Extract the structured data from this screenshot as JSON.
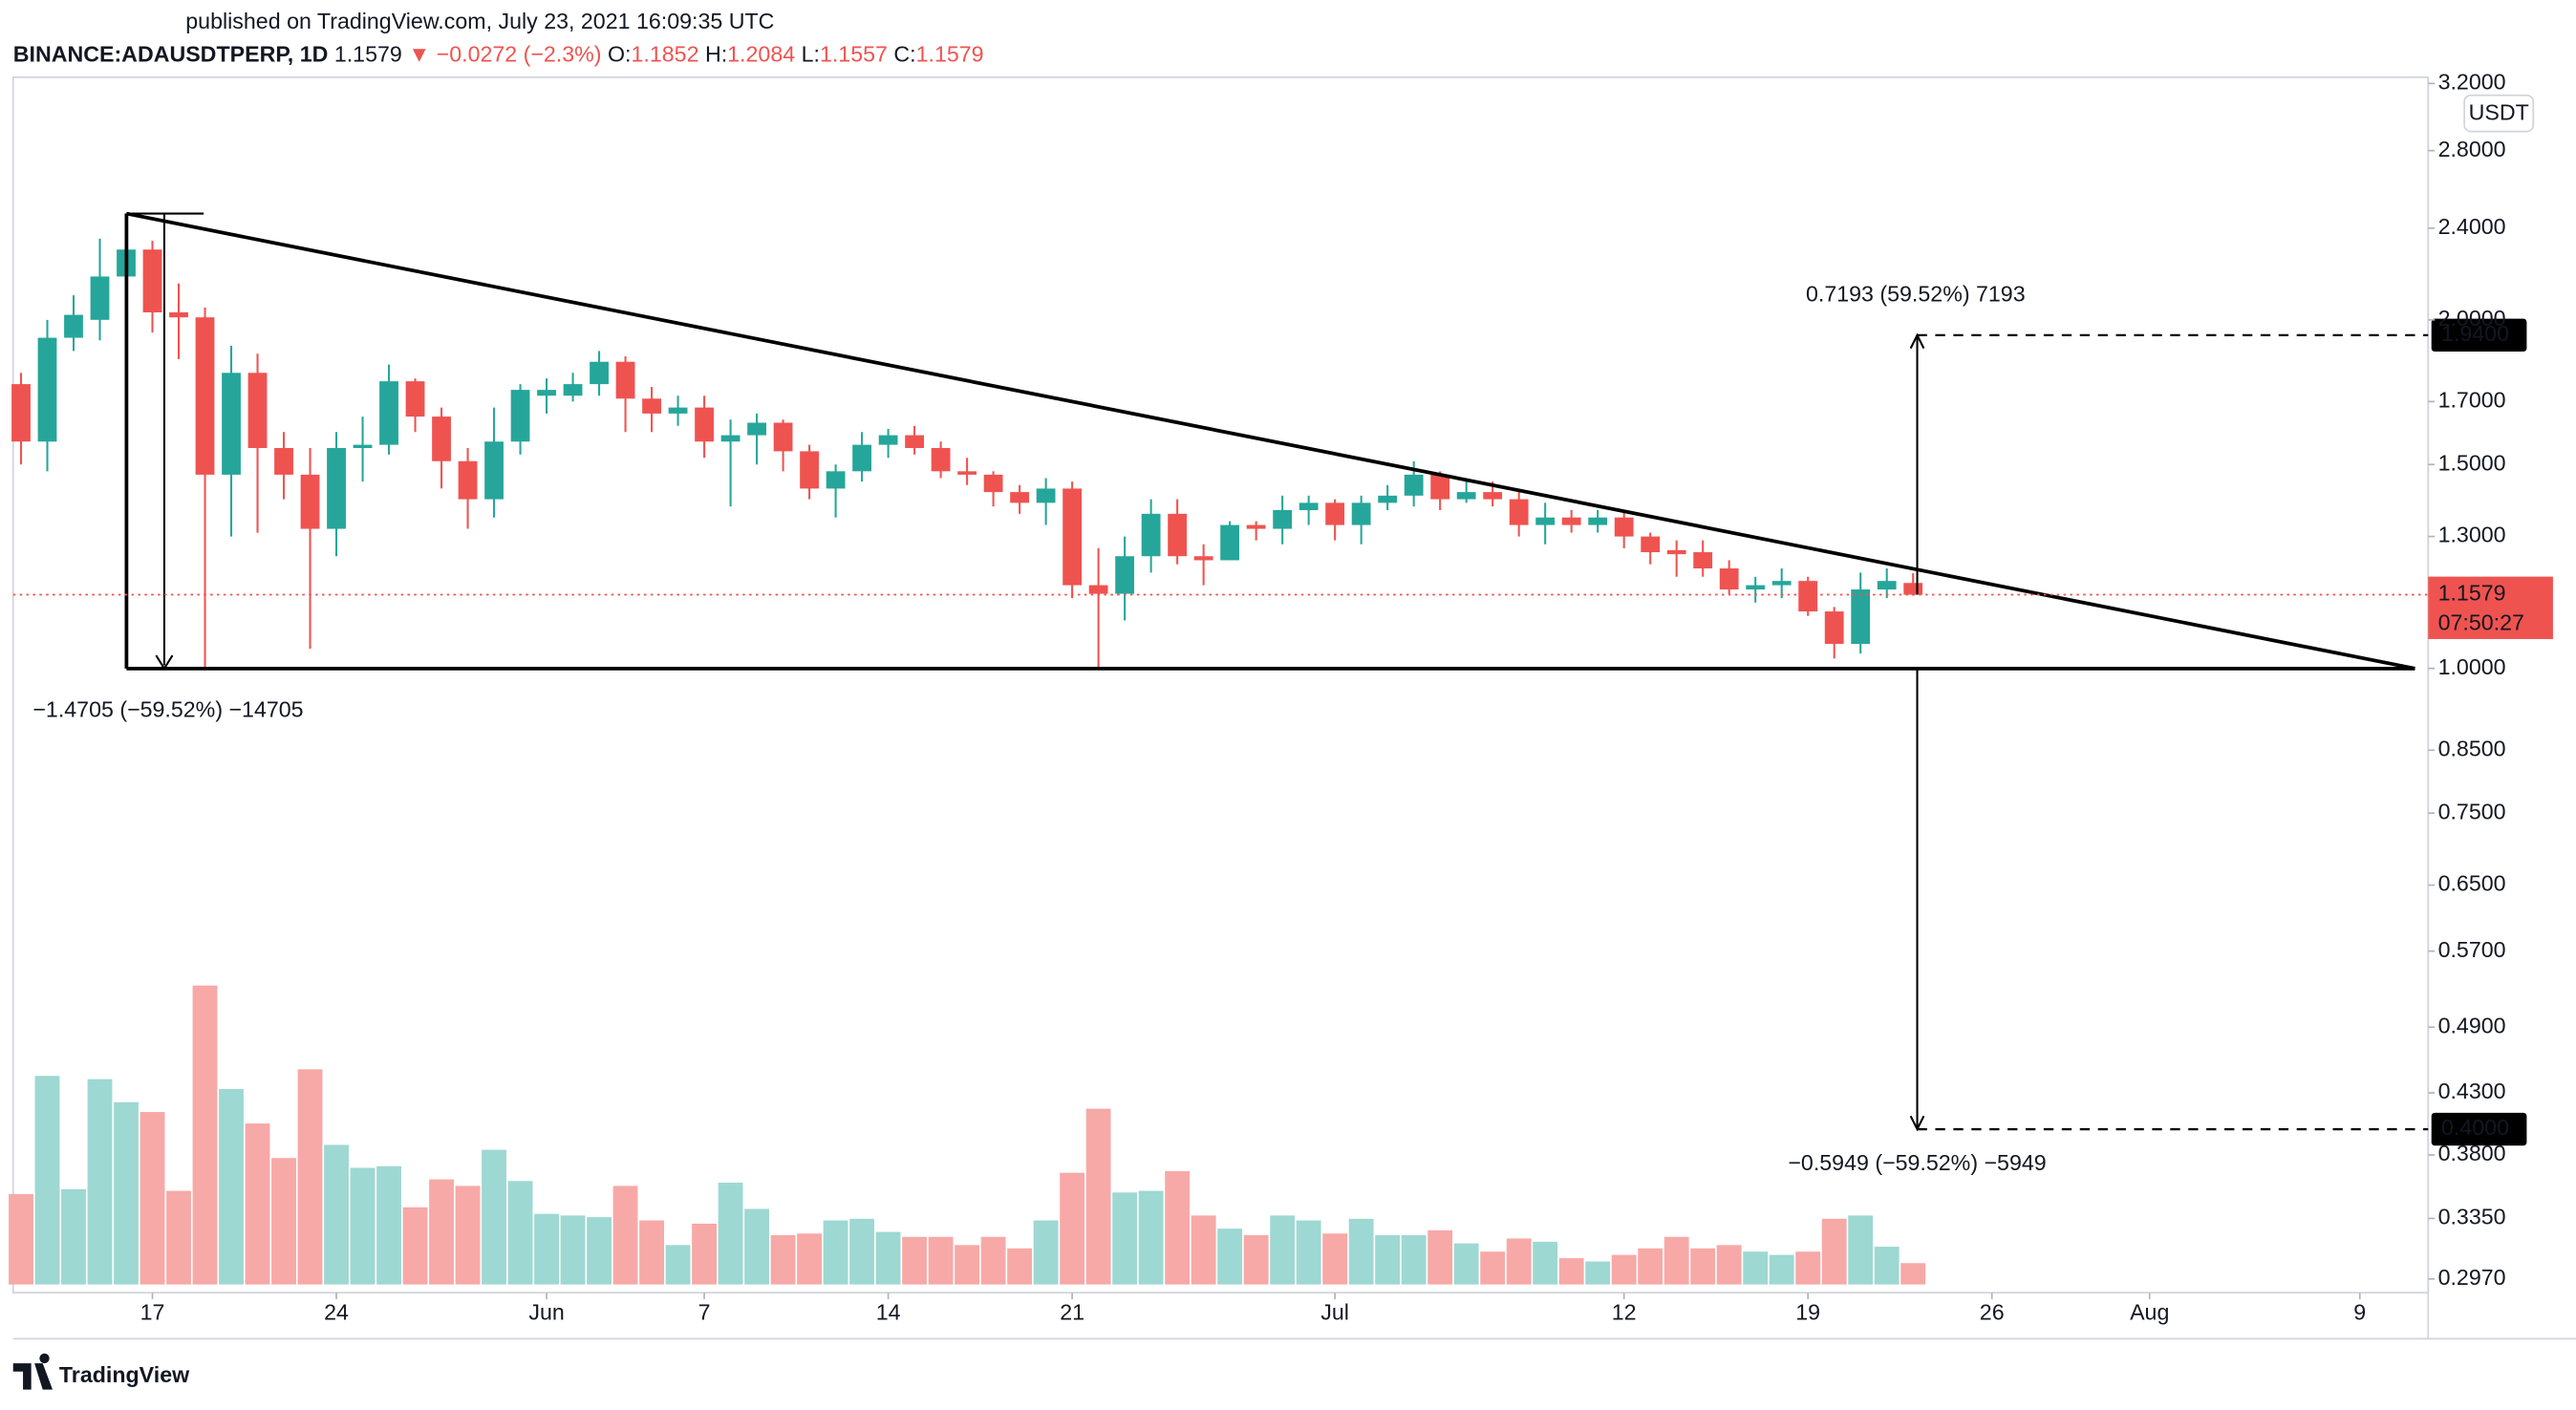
{
  "chart_data": {
    "type": "candlestick",
    "published": "published on TradingView.com, July 23, 2021 16:09:35 UTC",
    "header": {
      "symbol": "BINANCE:ADAUSDTPERP, 1D",
      "last": "1.1579",
      "change": "▼ −0.0272 (−2.3%)",
      "o_label": "O:",
      "o": "1.1852",
      "h_label": "H:",
      "h": "1.2084",
      "l_label": "L:",
      "l": "1.1557",
      "c_label": "C:",
      "c": "1.1579"
    },
    "currency": "USDT",
    "brand": "TradingView",
    "up_color": "#26a69a",
    "down_color": "#ef5350",
    "up_volume_color": "#9ed8d2",
    "down_volume_color": "#f7a9a7",
    "log_scale": true,
    "grid": false,
    "open": [
      1.76,
      1.57,
      1.93,
      2.0,
      2.18,
      2.3,
      2.03,
      2.01,
      1.47,
      1.8,
      1.55,
      1.47,
      1.32,
      1.55,
      1.56,
      1.77,
      1.65,
      1.51,
      1.4,
      1.57,
      1.72,
      1.72,
      1.76,
      1.84,
      1.71,
      1.66,
      1.68,
      1.57,
      1.59,
      1.63,
      1.54,
      1.43,
      1.48,
      1.56,
      1.59,
      1.55,
      1.48,
      1.47,
      1.42,
      1.39,
      1.43,
      1.18,
      1.16,
      1.25,
      1.36,
      1.25,
      1.24,
      1.33,
      1.32,
      1.37,
      1.39,
      1.33,
      1.39,
      1.41,
      1.47,
      1.4,
      1.42,
      1.4,
      1.33,
      1.35,
      1.33,
      1.35,
      1.3,
      1.265,
      1.26,
      1.22,
      1.17,
      1.18,
      1.19,
      1.12,
      1.05,
      1.17,
      1.1852
    ],
    "high": [
      1.8,
      2.0,
      2.1,
      2.35,
      2.45,
      2.34,
      2.15,
      2.05,
      1.9,
      1.87,
      1.6,
      1.55,
      1.6,
      1.65,
      1.83,
      1.78,
      1.68,
      1.55,
      1.68,
      1.76,
      1.78,
      1.8,
      1.88,
      1.86,
      1.75,
      1.72,
      1.72,
      1.64,
      1.66,
      1.64,
      1.56,
      1.5,
      1.6,
      1.61,
      1.62,
      1.57,
      1.52,
      1.48,
      1.44,
      1.46,
      1.45,
      1.27,
      1.3,
      1.4,
      1.4,
      1.28,
      1.34,
      1.34,
      1.41,
      1.41,
      1.4,
      1.41,
      1.44,
      1.51,
      1.48,
      1.46,
      1.45,
      1.42,
      1.39,
      1.37,
      1.37,
      1.37,
      1.31,
      1.29,
      1.29,
      1.24,
      1.2,
      1.22,
      1.2,
      1.13,
      1.21,
      1.22,
      1.2084
    ],
    "low": [
      1.5,
      1.48,
      1.88,
      1.92,
      2.0,
      1.95,
      1.85,
      1.0,
      1.3,
      1.31,
      1.4,
      1.04,
      1.25,
      1.45,
      1.53,
      1.6,
      1.43,
      1.32,
      1.35,
      1.53,
      1.66,
      1.7,
      1.72,
      1.6,
      1.6,
      1.62,
      1.52,
      1.38,
      1.5,
      1.48,
      1.4,
      1.35,
      1.45,
      1.52,
      1.53,
      1.46,
      1.44,
      1.38,
      1.36,
      1.33,
      1.15,
      1.0,
      1.1,
      1.21,
      1.23,
      1.18,
      1.24,
      1.29,
      1.28,
      1.33,
      1.29,
      1.28,
      1.37,
      1.38,
      1.37,
      1.39,
      1.38,
      1.3,
      1.28,
      1.31,
      1.31,
      1.27,
      1.23,
      1.2,
      1.2,
      1.16,
      1.14,
      1.15,
      1.11,
      1.02,
      1.03,
      1.15,
      1.1557
    ],
    "close": [
      1.57,
      1.93,
      2.02,
      2.18,
      2.3,
      2.03,
      2.01,
      1.47,
      1.8,
      1.55,
      1.47,
      1.32,
      1.55,
      1.56,
      1.77,
      1.65,
      1.51,
      1.4,
      1.57,
      1.74,
      1.74,
      1.76,
      1.84,
      1.71,
      1.66,
      1.68,
      1.57,
      1.59,
      1.63,
      1.54,
      1.43,
      1.48,
      1.56,
      1.59,
      1.55,
      1.48,
      1.47,
      1.42,
      1.39,
      1.43,
      1.18,
      1.16,
      1.25,
      1.36,
      1.25,
      1.24,
      1.33,
      1.32,
      1.37,
      1.39,
      1.33,
      1.39,
      1.41,
      1.47,
      1.4,
      1.42,
      1.4,
      1.33,
      1.35,
      1.33,
      1.35,
      1.3,
      1.26,
      1.255,
      1.22,
      1.17,
      1.18,
      1.19,
      1.12,
      1.05,
      1.17,
      1.19,
      1.1579
    ],
    "volume": [
      55,
      127,
      58,
      125,
      111,
      105,
      57,
      182,
      119,
      98,
      77,
      131,
      85,
      71,
      72,
      47,
      64,
      60,
      82,
      63,
      43,
      42,
      41,
      60,
      39,
      24,
      37,
      62,
      46,
      30,
      31,
      39,
      40,
      32,
      29,
      29,
      24,
      29,
      22,
      39,
      68,
      107,
      56,
      57,
      69,
      42,
      34,
      30,
      42,
      39,
      31,
      40,
      30,
      30,
      33,
      25,
      20,
      28,
      26,
      16,
      14,
      18,
      22,
      29,
      22,
      24,
      20,
      18,
      20,
      40,
      42,
      23,
      13
    ],
    "xlim": [
      -0.3,
      91.6
    ],
    "xticks": [
      {
        "value": 5,
        "label": "17"
      },
      {
        "value": 12,
        "label": "24"
      },
      {
        "value": 20,
        "label": "Jun"
      },
      {
        "value": 26,
        "label": "7"
      },
      {
        "value": 33,
        "label": "14"
      },
      {
        "value": 40,
        "label": "21"
      },
      {
        "value": 50,
        "label": "Jul"
      },
      {
        "value": 61,
        "label": "12"
      },
      {
        "value": 68,
        "label": "19"
      },
      {
        "value": 75,
        "label": "26"
      },
      {
        "value": 81,
        "label": "Aug"
      },
      {
        "value": 89,
        "label": "9"
      }
    ],
    "ylim": [
      0.289,
      3.24
    ],
    "yticks": [
      {
        "value": 3.2,
        "label": "3.2000"
      },
      {
        "value": 2.8,
        "label": "2.8000"
      },
      {
        "value": 2.4,
        "label": "2.4000"
      },
      {
        "value": 2.0,
        "label": "2.0000"
      },
      {
        "value": 1.7,
        "label": "1.7000"
      },
      {
        "value": 1.5,
        "label": "1.5000"
      },
      {
        "value": 1.3,
        "label": "1.3000"
      },
      {
        "value": 1.0,
        "label": "1.0000"
      },
      {
        "value": 0.85,
        "label": "0.8500"
      },
      {
        "value": 0.75,
        "label": "0.7500"
      },
      {
        "value": 0.65,
        "label": "0.6500"
      },
      {
        "value": 0.57,
        "label": "0.5700"
      },
      {
        "value": 0.49,
        "label": "0.4900"
      },
      {
        "value": 0.43,
        "label": "0.4300"
      },
      {
        "value": 0.38,
        "label": "0.3800"
      },
      {
        "value": 0.335,
        "label": "0.3350"
      },
      {
        "value": 0.297,
        "label": "0.2970"
      }
    ],
    "last_price": {
      "value": 1.1579,
      "label": "1.1579"
    },
    "countdown": "07:50:27",
    "targets": [
      {
        "value": 1.94,
        "label": "1.9400"
      },
      {
        "value": 0.4,
        "label": "0.4000"
      }
    ],
    "annotations": {
      "pattern_height": "−1.4705 (−59.52%) −14705",
      "upside": "0.7193 (59.52%) 7193",
      "downside": "−0.5949 (−59.52%) −5949"
    }
  }
}
